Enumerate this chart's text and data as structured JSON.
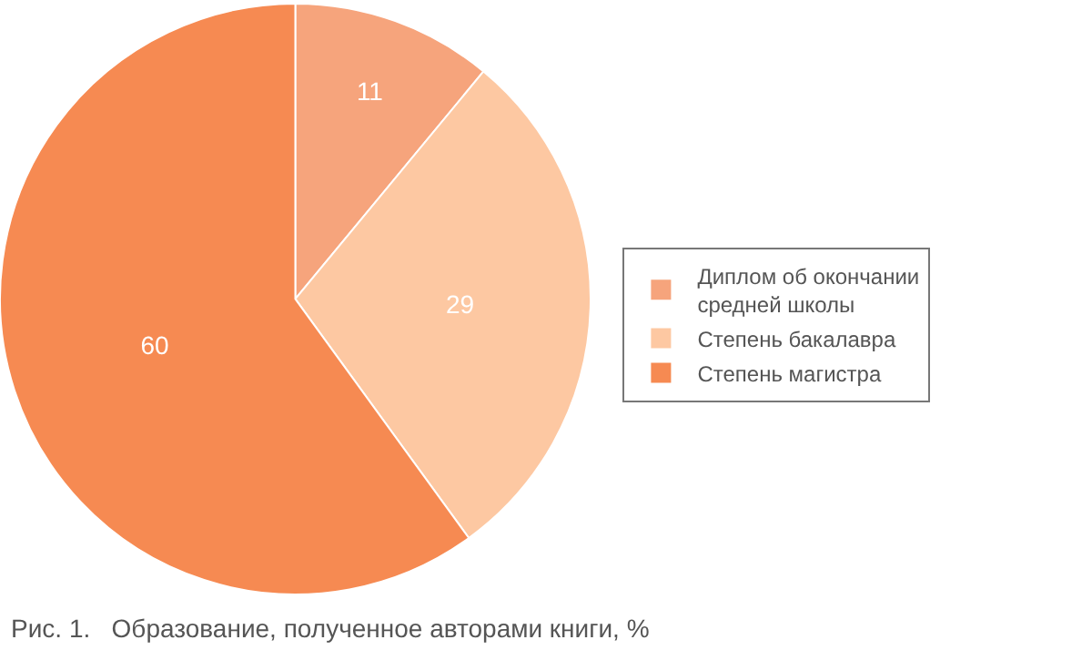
{
  "chart_data": {
    "type": "pie",
    "title": "Рис. 1.   Образование, полученное авторами книги, %",
    "categories": [
      "Диплом об окончании средней школы",
      "Степень бакалавра",
      "Степень магистра"
    ],
    "values": [
      11,
      29,
      60
    ],
    "colors": [
      "#f6a47c",
      "#fdc8a2",
      "#f68a52"
    ],
    "data_labels": true,
    "legend": "right"
  }
}
